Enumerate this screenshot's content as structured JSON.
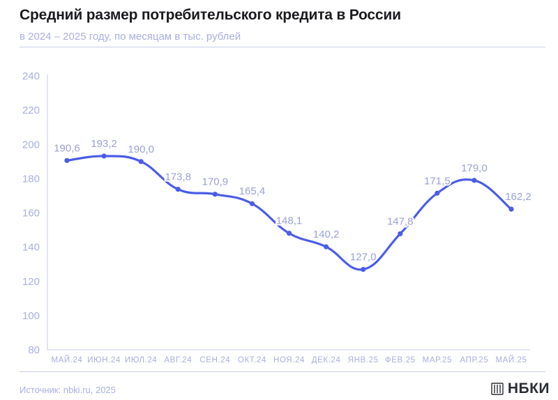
{
  "header": {
    "title": "Средний размер потребительского кредита в России",
    "subtitle": "в 2024 – 2025 году, по месяцам в тыс. рублей"
  },
  "footer": {
    "source": "Источник: nbki.ru, 2025",
    "brand": "НБКИ"
  },
  "colors": {
    "line": "#4a5ce8",
    "axis_text": "#a9aee3",
    "label_text": "#9aa0d8",
    "rule": "#c7cbe9"
  },
  "chart_data": {
    "type": "line",
    "categories": [
      "МАЙ.24",
      "ИЮН.24",
      "ИЮЛ.24",
      "АВГ.24",
      "СЕН.24",
      "ОКТ.24",
      "НОЯ.24",
      "ДЕК.24",
      "ЯНВ.25",
      "ФЕВ.25",
      "МАР.25",
      "АПР.25",
      "МАЙ.25"
    ],
    "series": [
      {
        "values": [
          190.6,
          193.2,
          190.0,
          173.8,
          170.9,
          165.4,
          148.1,
          140.2,
          127.0,
          147.8,
          171.5,
          179.0,
          162.2
        ],
        "labels": [
          "190,6",
          "193,2",
          "190,0",
          "173,8",
          "170,9",
          "165,4",
          "148,1",
          "140,2",
          "127,0",
          "147,8",
          "171,5",
          "179,0",
          "162,2"
        ]
      }
    ],
    "ylim": [
      80,
      240
    ],
    "yticks": [
      "80",
      "100",
      "120",
      "140",
      "160",
      "180",
      "200",
      "220",
      "240"
    ],
    "grid": false,
    "legend": "none"
  }
}
